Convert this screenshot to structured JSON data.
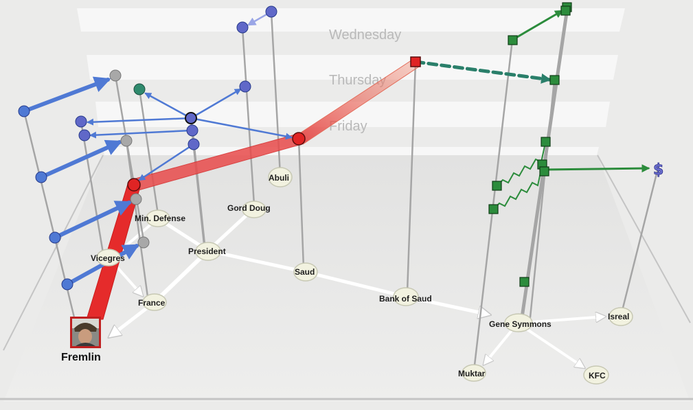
{
  "days": [
    "Wednesday",
    "Thursday",
    "Friday"
  ],
  "entities": {
    "fremlin": "Fremlin",
    "min_defense": "Min. Defense",
    "gord_doug": "Gord Doug",
    "abuli": "Abuli",
    "vicegres": "Vicegres",
    "president": "President",
    "saud": "Saud",
    "france": "France",
    "bank_of_saud": "Bank of Saud",
    "gene_symmons": "Gene Symmons",
    "isreal": "Isreal",
    "muktar": "Muktar",
    "kfc": "KFC"
  },
  "money_symbol": "$",
  "colors": {
    "background": "#ebebea",
    "day_band": "#f8f8f8",
    "blue_event": "#4f79d4",
    "green_event": "#2c8c3c",
    "highlight_red": "#e02424",
    "node_fill": "#f2f2e0"
  }
}
